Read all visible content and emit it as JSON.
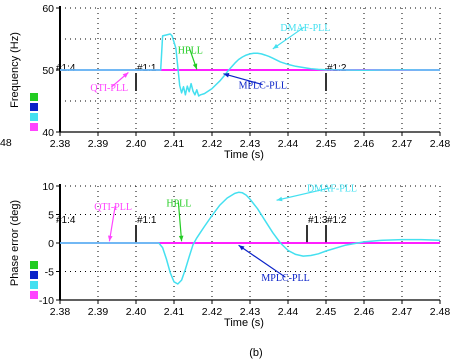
{
  "caption": "(b)",
  "colors": {
    "axis": "#000000",
    "grid": "#000000",
    "ref_line": "#ff00ff",
    "hpll": "#22cc22",
    "mplc": "#0a22c8",
    "dmaf": "#44e0f0",
    "qti": "#ff44ff"
  },
  "chart_data": [
    {
      "type": "line",
      "title": "",
      "xlabel": "Time (s)",
      "ylabel": "Frequency (Hz)",
      "xlim": [
        2.38,
        2.48
      ],
      "ylim": [
        40,
        60
      ],
      "grid": true,
      "x_ticks": [
        "2.38",
        "2.39",
        "2.40",
        "2.41",
        "2.42",
        "2.43",
        "2.44",
        "2.45",
        "2.46",
        "2.47",
        "2.48"
      ],
      "y_ticks": [
        "40",
        "50",
        "60"
      ],
      "left_partial_labels": [
        "48"
      ],
      "markers": [
        {
          "label": "#1:4",
          "x": 2.38
        },
        {
          "label": "#1:1",
          "x": 2.4
        },
        {
          "label": "#1:2",
          "x": 2.45
        }
      ],
      "annotations": [
        {
          "label": "QTI-PLL",
          "color": "qti",
          "x": 2.388,
          "y": 46.6,
          "arrow_x": 2.398,
          "arrow_y": 49.6
        },
        {
          "label": "HPLL",
          "color": "hpll",
          "x": 2.411,
          "y": 52.7,
          "arrow_x": 2.416,
          "arrow_y": 50.1
        },
        {
          "label": "MPLC-PLL",
          "color": "mplc",
          "x": 2.427,
          "y": 47.0,
          "arrow_x": 2.423,
          "arrow_y": 49.4
        },
        {
          "label": "DMAF-PLL",
          "color": "dmaf",
          "x": 2.438,
          "y": 56.3,
          "arrow_x": 2.436,
          "arrow_y": 53.4
        }
      ],
      "series": [
        {
          "color": "ref_line",
          "x": [
            2.38,
            2.48
          ],
          "y": [
            50,
            50
          ]
        },
        {
          "color": "dmaf",
          "x": [
            2.38,
            2.4,
            2.4065,
            2.407,
            2.409,
            2.4095,
            2.4105,
            2.411,
            2.4115,
            2.412,
            2.4125,
            2.413,
            2.4135,
            2.414,
            2.4145,
            2.415,
            2.4155,
            2.416,
            2.4165,
            2.417,
            2.418,
            2.419,
            2.42,
            2.421,
            2.422,
            2.423,
            2.424,
            2.425,
            2.426,
            2.427,
            2.428,
            2.429,
            2.43,
            2.431,
            2.432,
            2.433,
            2.434,
            2.435,
            2.436,
            2.437,
            2.438,
            2.44,
            2.442,
            2.444,
            2.446,
            2.448,
            2.45,
            2.455,
            2.46,
            2.465,
            2.47,
            2.475,
            2.48
          ],
          "y": [
            50,
            50,
            50,
            55.5,
            55.8,
            55.5,
            53.5,
            50.5,
            47.5,
            46.3,
            47.3,
            46.0,
            47.4,
            46.5,
            47.8,
            46.6,
            46.0,
            46.8,
            45.8,
            46.0,
            46.2,
            46.6,
            47.0,
            47.6,
            48.2,
            48.9,
            49.7,
            50.4,
            51.1,
            51.7,
            52.1,
            52.4,
            52.6,
            52.7,
            52.7,
            52.6,
            52.4,
            52.2,
            51.9,
            51.6,
            51.3,
            50.9,
            50.6,
            50.4,
            50.2,
            50.1,
            50.05,
            50.0,
            49.95,
            50.0,
            50.02,
            50.0,
            50.0
          ]
        }
      ]
    },
    {
      "type": "line",
      "title": "",
      "xlabel": "Time (s)",
      "ylabel": "Phase error (deg)",
      "xlim": [
        2.38,
        2.48
      ],
      "ylim": [
        -10,
        10
      ],
      "grid": true,
      "x_ticks": [
        "2.38",
        "2.39",
        "2.40",
        "2.41",
        "2.42",
        "2.43",
        "2.44",
        "2.45",
        "2.46",
        "2.47",
        "2.48"
      ],
      "y_ticks": [
        "10",
        "5",
        "0",
        "-5",
        "-10"
      ],
      "markers": [
        {
          "label": "#1:4",
          "x": 2.38
        },
        {
          "label": "#1:1",
          "x": 2.4
        },
        {
          "label": "#1:3",
          "x": 2.445
        },
        {
          "label": "#1:2",
          "x": 2.45
        }
      ],
      "annotations": [
        {
          "label": "QTI-PLL",
          "color": "qti",
          "x": 2.389,
          "y": 5.8,
          "arrow_x": 2.393,
          "arrow_y": 0.3
        },
        {
          "label": "HPLL",
          "color": "hpll",
          "x": 2.408,
          "y": 6.4,
          "arrow_x": 2.412,
          "arrow_y": 0.3
        },
        {
          "label": "MPLC-PLL",
          "color": "mplc",
          "x": 2.433,
          "y": -6.7,
          "arrow_x": 2.427,
          "arrow_y": -0.4
        },
        {
          "label": "DMAF-PLL",
          "color": "dmaf",
          "x": 2.445,
          "y": 9.0,
          "arrow_x": 2.437,
          "arrow_y": 7.5
        }
      ],
      "series": [
        {
          "color": "ref_line",
          "x": [
            2.38,
            2.48
          ],
          "y": [
            0,
            0
          ]
        },
        {
          "color": "dmaf",
          "x": [
            2.38,
            2.406,
            2.407,
            2.408,
            2.409,
            2.41,
            2.411,
            2.412,
            2.413,
            2.414,
            2.415,
            2.416,
            2.417,
            2.418,
            2.42,
            2.422,
            2.424,
            2.426,
            2.427,
            2.428,
            2.429,
            2.43,
            2.432,
            2.434,
            2.436,
            2.438,
            2.44,
            2.442,
            2.444,
            2.446,
            2.448,
            2.45,
            2.455,
            2.46,
            2.465,
            2.47,
            2.475,
            2.48
          ],
          "y": [
            0,
            0,
            -0.8,
            -2.8,
            -5.2,
            -6.8,
            -7.2,
            -6.5,
            -4.6,
            -2.4,
            -0.3,
            0.9,
            1.9,
            2.9,
            4.8,
            6.6,
            7.9,
            8.7,
            8.9,
            8.8,
            8.4,
            7.7,
            6.0,
            3.9,
            1.8,
            0.0,
            -1.3,
            -2.0,
            -2.3,
            -2.2,
            -1.9,
            -1.4,
            -0.4,
            0.2,
            0.5,
            0.6,
            0.6,
            0.5
          ]
        }
      ]
    }
  ]
}
